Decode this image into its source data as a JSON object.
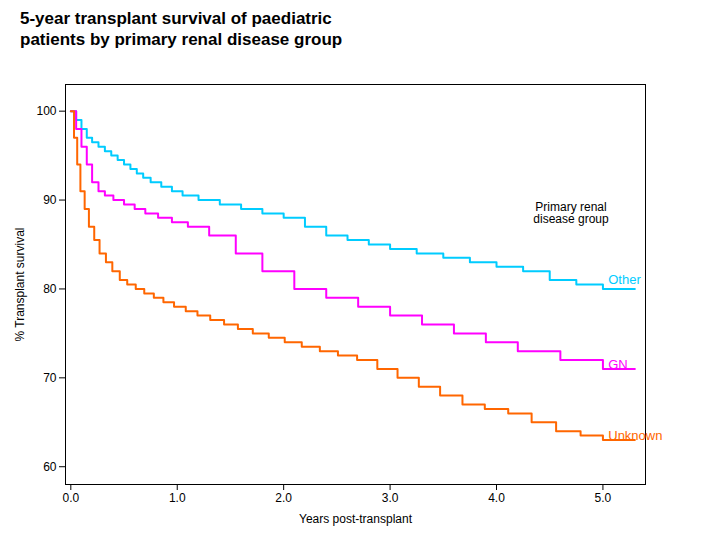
{
  "chart_data": {
    "type": "step",
    "title": "5-year transplant survival of paediatric\npatients by primary renal disease group",
    "xlabel": "Years post-transplant",
    "ylabel": "% Transplant survival",
    "xlim": [
      -0.05,
      5.4
    ],
    "ylim": [
      58,
      103
    ],
    "xticks": [
      0,
      1,
      2,
      3,
      4,
      5
    ],
    "yticks": [
      60,
      70,
      80,
      90,
      100
    ],
    "grid": false,
    "series": [
      {
        "name": "Other",
        "color": "#00CCFF",
        "x": [
          0.0,
          0.05,
          0.1,
          0.15,
          0.2,
          0.26,
          0.32,
          0.38,
          0.44,
          0.5,
          0.56,
          0.62,
          0.68,
          0.75,
          0.85,
          0.95,
          1.05,
          1.2,
          1.4,
          1.6,
          1.8,
          2.0,
          2.2,
          2.4,
          2.6,
          2.8,
          3.0,
          3.25,
          3.5,
          3.75,
          4.0,
          4.25,
          4.5,
          4.75,
          5.0,
          5.3
        ],
        "values": [
          100,
          99,
          98,
          97,
          96.5,
          96,
          95.5,
          95,
          94.5,
          94,
          93.5,
          93,
          92.5,
          92,
          91.5,
          91,
          90.5,
          90,
          89.5,
          89,
          88.5,
          88,
          87,
          86,
          85.5,
          85,
          84.5,
          84,
          83.5,
          83,
          82.5,
          82,
          81,
          80.5,
          80,
          80
        ]
      },
      {
        "name": "GN",
        "color": "#FF00FF",
        "x": [
          0.0,
          0.05,
          0.1,
          0.15,
          0.2,
          0.26,
          0.32,
          0.4,
          0.5,
          0.6,
          0.7,
          0.82,
          0.95,
          1.1,
          1.3,
          1.55,
          1.8,
          2.1,
          2.4,
          2.7,
          3.0,
          3.3,
          3.6,
          3.9,
          4.2,
          4.6,
          5.0,
          5.3
        ],
        "values": [
          100,
          98,
          96,
          94,
          92,
          91,
          90.5,
          90,
          89.5,
          89,
          88.5,
          88,
          87.5,
          87,
          86,
          84,
          82,
          80,
          79,
          78,
          77,
          76,
          75,
          74,
          73,
          72,
          71,
          71
        ]
      },
      {
        "name": "Unknown",
        "color": "#FF6600",
        "x": [
          0.0,
          0.03,
          0.06,
          0.09,
          0.13,
          0.17,
          0.22,
          0.27,
          0.33,
          0.39,
          0.46,
          0.53,
          0.61,
          0.69,
          0.78,
          0.87,
          0.97,
          1.08,
          1.19,
          1.31,
          1.44,
          1.57,
          1.71,
          1.86,
          2.01,
          2.17,
          2.34,
          2.51,
          2.69,
          2.88,
          3.07,
          3.27,
          3.47,
          3.68,
          3.89,
          4.11,
          4.33,
          4.56,
          4.79,
          5.0,
          5.3
        ],
        "values": [
          100,
          97,
          94,
          91,
          89,
          87,
          85.5,
          84,
          83,
          82,
          81,
          80.5,
          80,
          79.5,
          79,
          78.5,
          78,
          77.5,
          77,
          76.5,
          76,
          75.5,
          75,
          74.5,
          74,
          73.5,
          73,
          72.5,
          72,
          71,
          70,
          69,
          68,
          67,
          66.5,
          66,
          65,
          64,
          63.5,
          63,
          63
        ]
      }
    ],
    "annotations": [
      {
        "text": "Primary renal\ndisease group",
        "x": 4.7,
        "y": 88.5
      },
      {
        "text": "Other",
        "x": 5.05,
        "y": 81.0,
        "color": "#00CCFF"
      },
      {
        "text": "GN",
        "x": 5.05,
        "y": 71.5,
        "color": "#FF00FF"
      },
      {
        "text": "Unknown",
        "x": 5.05,
        "y": 63.5,
        "color": "#FF6600"
      }
    ]
  }
}
